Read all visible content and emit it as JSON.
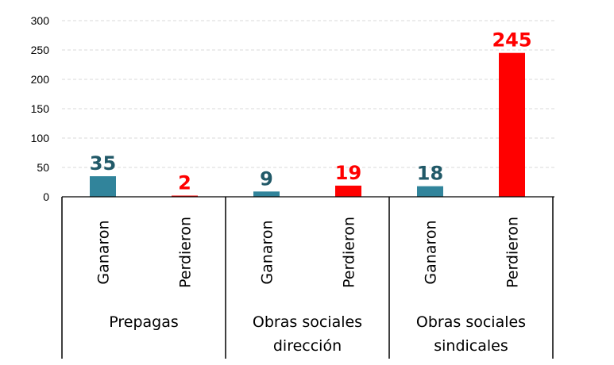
{
  "chart_data": {
    "type": "bar",
    "groups": [
      {
        "label_lines": [
          "Prepagas"
        ],
        "categories": [
          "Ganaron",
          "Perdieron"
        ],
        "values": [
          35,
          2
        ]
      },
      {
        "label_lines": [
          "Obras sociales",
          "dirección"
        ],
        "categories": [
          "Ganaron",
          "Perdieron"
        ],
        "values": [
          9,
          19
        ]
      },
      {
        "label_lines": [
          "Obras sociales",
          "sindicales"
        ],
        "categories": [
          "Ganaron",
          "Perdieron"
        ],
        "values": [
          18,
          245
        ]
      }
    ],
    "yticks": [
      "0",
      "50",
      "100",
      "150",
      "200",
      "250",
      "300"
    ],
    "ylim": [
      0,
      300
    ],
    "grid": "horizontal dashed",
    "colors": {
      "Ganaron": "#31849b",
      "Perdieron": "#ff0000",
      "Ganaron_label": "#215968",
      "Perdieron_label": "#ff0000"
    }
  }
}
